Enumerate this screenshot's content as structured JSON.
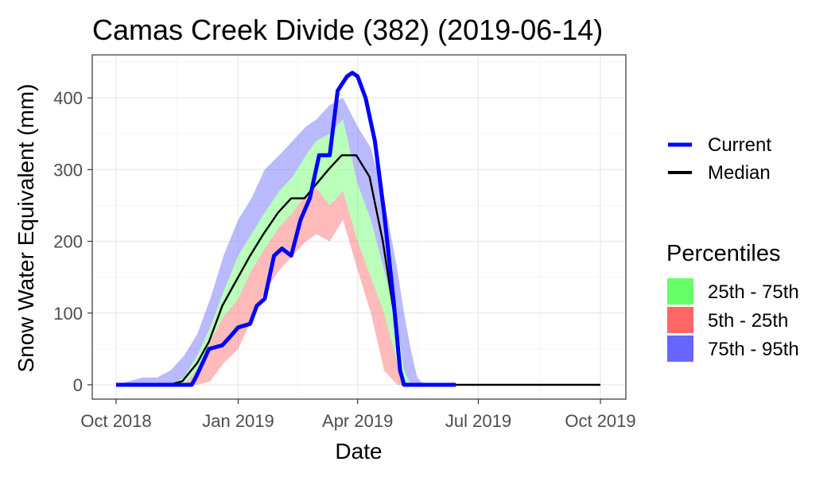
{
  "chart_data": {
    "type": "area",
    "title": "Camas Creek Divide (382) (2019-06-14)",
    "xlabel": "Date",
    "ylabel": "Snow Water Equivalent (mm)",
    "x_range": [
      "2018-10-01",
      "2019-10-01"
    ],
    "ylim": [
      -20,
      460
    ],
    "grid": true,
    "x_ticks": [
      {
        "date": "2018-10-01",
        "label": "Oct 2018"
      },
      {
        "date": "2019-01-01",
        "label": "Jan 2019"
      },
      {
        "date": "2019-04-01",
        "label": "Apr 2019"
      },
      {
        "date": "2019-07-01",
        "label": "Jul 2019"
      },
      {
        "date": "2019-10-01",
        "label": "Oct 2019"
      }
    ],
    "y_ticks": [
      0,
      100,
      200,
      300,
      400
    ],
    "legend": {
      "placement": "right",
      "lines": [
        {
          "label": "Current",
          "color": "#0000ff"
        },
        {
          "label": "Median",
          "color": "#000000"
        }
      ],
      "percentiles_title": "Percentiles",
      "bands": [
        {
          "label": "25th - 75th",
          "color": "#66ff66"
        },
        {
          "label": "5th - 25th",
          "color": "#ff6666"
        },
        {
          "label": "75th - 95th",
          "color": "#6666ff"
        }
      ]
    },
    "band_x": [
      "2018-10-01",
      "2018-10-11",
      "2018-10-21",
      "2018-11-01",
      "2018-11-11",
      "2018-11-21",
      "2018-12-01",
      "2018-12-11",
      "2018-12-21",
      "2019-01-01",
      "2019-01-11",
      "2019-01-21",
      "2019-02-01",
      "2019-02-11",
      "2019-02-21",
      "2019-03-01",
      "2019-03-11",
      "2019-03-21",
      "2019-04-01",
      "2019-04-11",
      "2019-04-21",
      "2019-05-01",
      "2019-05-06",
      "2019-05-11",
      "2019-05-16",
      "2019-05-21",
      "2019-06-01"
    ],
    "p5": [
      0,
      0,
      0,
      0,
      0,
      0,
      0,
      5,
      30,
      50,
      90,
      130,
      160,
      180,
      200,
      210,
      200,
      230,
      160,
      100,
      20,
      0,
      0,
      0,
      0,
      0,
      0
    ],
    "p25": [
      0,
      0,
      0,
      0,
      0,
      0,
      20,
      60,
      95,
      120,
      160,
      190,
      220,
      240,
      265,
      275,
      250,
      270,
      200,
      150,
      100,
      30,
      0,
      0,
      0,
      0,
      0
    ],
    "p75": [
      0,
      0,
      0,
      0,
      0,
      10,
      40,
      80,
      130,
      180,
      210,
      240,
      270,
      290,
      320,
      340,
      350,
      370,
      280,
      230,
      160,
      80,
      20,
      0,
      0,
      0,
      0
    ],
    "p95": [
      0,
      5,
      10,
      10,
      20,
      40,
      70,
      120,
      180,
      230,
      260,
      300,
      320,
      340,
      360,
      370,
      390,
      400,
      360,
      330,
      260,
      160,
      100,
      50,
      10,
      0,
      0
    ],
    "series": [
      {
        "name": "Current",
        "color": "#0000ff",
        "x": [
          "2018-10-01",
          "2018-11-27",
          "2018-11-30",
          "2018-12-05",
          "2018-12-10",
          "2018-12-20",
          "2018-12-25",
          "2019-01-01",
          "2019-01-10",
          "2019-01-15",
          "2019-01-21",
          "2019-01-28",
          "2019-02-03",
          "2019-02-10",
          "2019-02-17",
          "2019-02-24",
          "2019-03-03",
          "2019-03-11",
          "2019-03-17",
          "2019-03-24",
          "2019-03-28",
          "2019-04-01",
          "2019-04-07",
          "2019-04-14",
          "2019-04-21",
          "2019-04-28",
          "2019-05-03",
          "2019-05-06",
          "2019-06-14"
        ],
        "values": [
          0,
          0,
          10,
          30,
          50,
          55,
          65,
          80,
          85,
          110,
          120,
          180,
          190,
          180,
          230,
          260,
          320,
          320,
          410,
          430,
          435,
          430,
          400,
          340,
          240,
          120,
          20,
          0,
          0
        ]
      },
      {
        "name": "Median",
        "color": "#000000",
        "x": [
          "2018-10-01",
          "2018-11-10",
          "2018-11-20",
          "2018-12-01",
          "2018-12-10",
          "2018-12-20",
          "2019-01-01",
          "2019-01-10",
          "2019-01-20",
          "2019-01-31",
          "2019-02-10",
          "2019-02-20",
          "2019-03-01",
          "2019-03-10",
          "2019-03-20",
          "2019-03-31",
          "2019-04-10",
          "2019-04-20",
          "2019-04-30",
          "2019-05-05",
          "2019-05-10",
          "2019-06-01",
          "2019-10-01"
        ],
        "values": [
          0,
          0,
          5,
          30,
          60,
          110,
          150,
          180,
          210,
          240,
          260,
          260,
          280,
          300,
          320,
          320,
          290,
          200,
          80,
          0,
          0,
          0,
          0
        ]
      }
    ]
  }
}
